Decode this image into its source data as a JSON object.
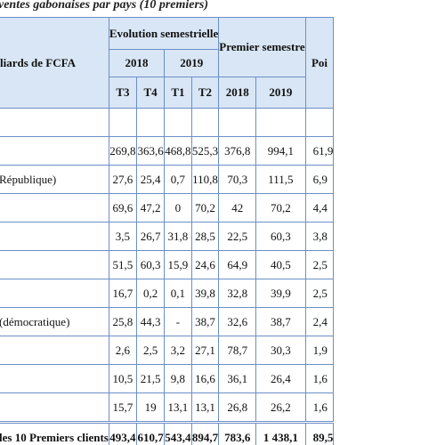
{
  "caption": "ventes gabonaises par pays (10 premiers)",
  "header": {
    "label_col": "liards de FCFA",
    "evolution_group": "Evolution semestrielle",
    "first_semester_group": "Premier semestre",
    "weight_col": "Poi",
    "year_2018": "2018",
    "year_2019": "2019",
    "q_t3": "T3",
    "q_t4": "T4",
    "q_t1": "T1",
    "q_t2": "T2",
    "sem_2018": "2018",
    "sem_2019": "2019"
  },
  "rows": [
    {
      "country": "",
      "t3": "269,8",
      "t4": "363,6",
      "t1": "468,8",
      "t2": "525,3",
      "s2018": "376,8",
      "s2019": "994,1",
      "weight": "61,9"
    },
    {
      "country": "République)",
      "t3": "27,6",
      "t4": "25,4",
      "t1": "0,7",
      "t2": "110,8",
      "s2018": "70,3",
      "s2019": "111,5",
      "weight": "6,9"
    },
    {
      "country": "",
      "t3": "69,6",
      "t4": "47,2",
      "t1": "0",
      "t2": "70,2",
      "s2018": "42",
      "s2019": "70,2",
      "weight": "4,4"
    },
    {
      "country": "",
      "t3": "3,5",
      "t4": "26,7",
      "t1": "31,8",
      "t2": "28,5",
      "s2018": "22,5",
      "s2019": "60,3",
      "weight": "3,8"
    },
    {
      "country": "",
      "t3": "51,5",
      "t4": "60,3",
      "t1": "15,9",
      "t2": "24,6",
      "s2018": "64,9",
      "s2019": "40,5",
      "weight": "2,5"
    },
    {
      "country": "",
      "t3": "16,7",
      "t4": "0,2",
      "t1": "0,1",
      "t2": "39,8",
      "s2018": "32,8",
      "s2019": "39,9",
      "weight": "2,5"
    },
    {
      "country": "(démocratique)",
      "t3": "25,8",
      "t4": "44,3",
      "t1": "-",
      "t2": "38,7",
      "s2018": "32,6",
      "s2019": "38,7",
      "weight": "2,4"
    },
    {
      "country": "",
      "t3": "2,6",
      "t4": "2,5",
      "t1": "3,2",
      "t2": "27,1",
      "s2018": "78,7",
      "s2019": "30,3",
      "weight": "1,9"
    },
    {
      "country": "",
      "t3": "10,5",
      "t4": "21,5",
      "t1": "9,8",
      "t2": "16,6",
      "s2018": "36,1",
      "s2019": "26,4",
      "weight": "1,6"
    },
    {
      "country": "",
      "t3": "15,7",
      "t4": "19",
      "t1": "13,1",
      "t2": "13,1",
      "s2018": "26,8",
      "s2019": "26,2",
      "weight": "1,6"
    }
  ],
  "total": {
    "country": "les 10 Premiers clients",
    "t3": "493,4",
    "t4": "610,7",
    "t1": "543,4",
    "t2": "894,7",
    "s2018": "783,6",
    "s2019": "1 438,1",
    "weight": "89,5"
  }
}
